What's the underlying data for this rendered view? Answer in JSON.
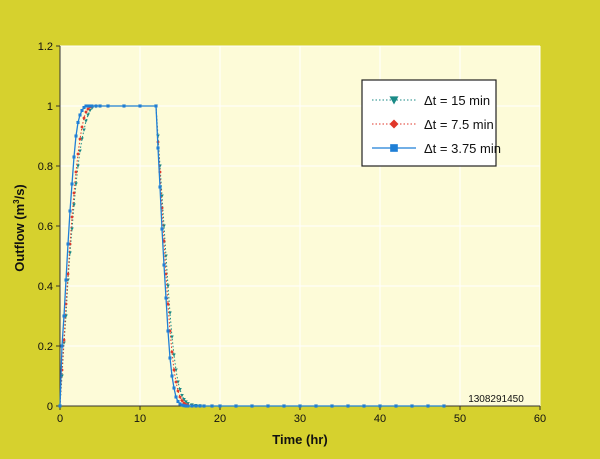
{
  "colors": {
    "background": "#d6d12e",
    "plot_area": "#fdfbd8",
    "grid": "#ffffff",
    "series_15": "#1a8a86",
    "series_7_5": "#e0372a",
    "series_3_75": "#1f7fd6"
  },
  "chart_data": {
    "type": "line",
    "title": "",
    "xlabel": "Time (hr)",
    "ylabel": "Outflow (m³/s)",
    "ylabel_main": "Outflow (m",
    "ylabel_sup": "3",
    "ylabel_tail": "/s)",
    "xlim": [
      0,
      60
    ],
    "ylim": [
      0,
      1.2
    ],
    "xticks": [
      0,
      10,
      20,
      30,
      40,
      50,
      60
    ],
    "xtick_labels": [
      "0",
      "10",
      "20",
      "30",
      "40",
      "50",
      "60"
    ],
    "yticks": [
      0,
      0.2,
      0.4,
      0.6,
      0.8,
      1,
      1.2
    ],
    "ytick_labels": [
      "0",
      "0.2",
      "0.4",
      "0.6",
      "0.8",
      "1",
      "1.2"
    ],
    "grid": true,
    "legend_position": "top-right",
    "annotation": "1308291450",
    "series": [
      {
        "name": "Δt = 15 min",
        "marker": "triangle-down",
        "line_style": "dotted",
        "color": "#1a8a86",
        "x": [
          0,
          0.25,
          0.5,
          0.75,
          1,
          1.25,
          1.5,
          1.75,
          2,
          2.25,
          2.5,
          2.75,
          3,
          3.25,
          3.5,
          3.75,
          4,
          4.5,
          5,
          6,
          8,
          10,
          12,
          12.25,
          12.5,
          12.75,
          13,
          13.25,
          13.5,
          13.75,
          14,
          14.25,
          14.5,
          14.75,
          15,
          15.25,
          15.5,
          15.75,
          16,
          16.5,
          17,
          17.5,
          18,
          19,
          20,
          22,
          24,
          26,
          28,
          30,
          32,
          34,
          36,
          38,
          40,
          42,
          44,
          46,
          48
        ],
        "y": [
          0,
          0.1,
          0.21,
          0.3,
          0.42,
          0.51,
          0.59,
          0.67,
          0.74,
          0.8,
          0.85,
          0.89,
          0.92,
          0.95,
          0.97,
          0.985,
          0.993,
          0.998,
          1,
          1,
          1,
          1,
          1,
          0.9,
          0.8,
          0.7,
          0.6,
          0.5,
          0.4,
          0.31,
          0.23,
          0.17,
          0.12,
          0.08,
          0.055,
          0.035,
          0.022,
          0.014,
          0.008,
          0.004,
          0.002,
          0.001,
          0,
          0,
          0,
          0,
          0,
          0,
          0,
          0,
          0,
          0,
          0,
          0,
          0,
          0,
          0,
          0,
          0
        ]
      },
      {
        "name": "Δt = 7.5 min",
        "marker": "diamond",
        "line_style": "dotted",
        "color": "#e0372a",
        "x": [
          0,
          0.25,
          0.5,
          0.75,
          1,
          1.25,
          1.5,
          1.75,
          2,
          2.25,
          2.5,
          2.75,
          3,
          3.25,
          3.5,
          3.75,
          4,
          4.5,
          5,
          6,
          8,
          10,
          12,
          12.25,
          12.5,
          12.75,
          13,
          13.25,
          13.5,
          13.75,
          14,
          14.25,
          14.5,
          14.75,
          15,
          15.25,
          15.5,
          15.75,
          16,
          16.5,
          17,
          17.5,
          18,
          19,
          20,
          22,
          24,
          26,
          28,
          30,
          32,
          34,
          36,
          38,
          40,
          42,
          44,
          46,
          48
        ],
        "y": [
          0,
          0.12,
          0.22,
          0.34,
          0.44,
          0.54,
          0.63,
          0.71,
          0.78,
          0.84,
          0.89,
          0.93,
          0.96,
          0.98,
          0.99,
          0.996,
          0.999,
          1,
          1,
          1,
          1,
          1,
          1,
          0.88,
          0.78,
          0.66,
          0.55,
          0.44,
          0.34,
          0.25,
          0.18,
          0.12,
          0.08,
          0.05,
          0.03,
          0.018,
          0.01,
          0.005,
          0.003,
          0.001,
          0,
          0,
          0,
          0,
          0,
          0,
          0,
          0,
          0,
          0,
          0,
          0,
          0,
          0,
          0,
          0,
          0,
          0,
          0
        ]
      },
      {
        "name": "Δt = 3.75 min",
        "marker": "square",
        "line_style": "solid",
        "color": "#1f7fd6",
        "x": [
          0,
          0.25,
          0.5,
          0.75,
          1,
          1.25,
          1.5,
          1.75,
          2,
          2.25,
          2.5,
          2.75,
          3,
          3.25,
          3.5,
          3.75,
          4,
          4.5,
          5,
          6,
          8,
          10,
          12,
          12.25,
          12.5,
          12.75,
          13,
          13.25,
          13.5,
          13.75,
          14,
          14.25,
          14.5,
          14.75,
          15,
          15.25,
          15.5,
          15.75,
          16,
          16.5,
          17,
          17.5,
          18,
          19,
          20,
          22,
          24,
          26,
          28,
          30,
          32,
          34,
          36,
          38,
          40,
          42,
          44,
          46,
          48
        ],
        "y": [
          0,
          0.2,
          0.3,
          0.42,
          0.54,
          0.65,
          0.74,
          0.83,
          0.9,
          0.945,
          0.97,
          0.985,
          0.995,
          1,
          1,
          1,
          1,
          1,
          1,
          1,
          1,
          1,
          1,
          0.86,
          0.73,
          0.59,
          0.47,
          0.36,
          0.25,
          0.16,
          0.1,
          0.06,
          0.03,
          0.015,
          0.007,
          0.003,
          0.001,
          0,
          0,
          0,
          0,
          0,
          0,
          0,
          0,
          0,
          0,
          0,
          0,
          0,
          0,
          0,
          0,
          0,
          0,
          0,
          0,
          0,
          0
        ]
      }
    ]
  }
}
